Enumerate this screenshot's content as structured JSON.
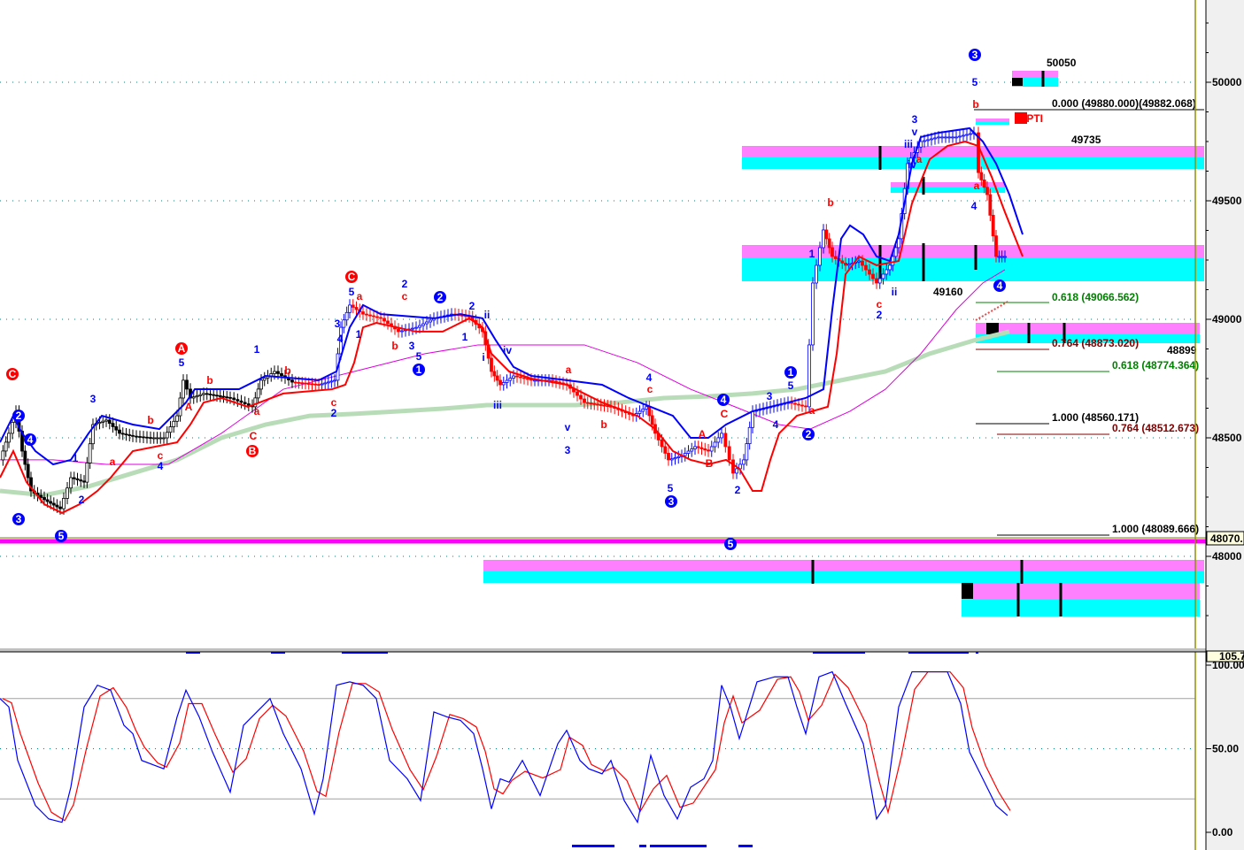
{
  "chart_data": [
    {
      "type": "line",
      "panel": "price",
      "price_axis": {
        "ticks": [
          "50000",
          "49500",
          "49000",
          "48500",
          "48000"
        ],
        "values": [
          50000,
          49500,
          49000,
          48500,
          48000
        ],
        "ylim": [
          47670,
          50340
        ],
        "current_price_label": "48070."
      },
      "grid": "horizontal dotted",
      "series": [
        {
          "role": "price-bars",
          "x": [
            0,
            2,
            3.6,
            5,
            7,
            10,
            13.6,
            16,
            19,
            21,
            24,
            27,
            30,
            34,
            37,
            40,
            41.4,
            43,
            46,
            52,
            57,
            59,
            62,
            66,
            72,
            75.6,
            77,
            79,
            82,
            86,
            90,
            94,
            98,
            102,
            106,
            109,
            111,
            113,
            116,
            120,
            124,
            128,
            132,
            138,
            143,
            146,
            148,
            151,
            154,
            157,
            160,
            163,
            165.6,
            168,
            170,
            174,
            178,
            182,
            183.6,
            186,
            188,
            191,
            194,
            198,
            201,
            203,
            205,
            208,
            212,
            216,
            220,
            221,
            223,
            225,
            227
          ],
          "values": [
            48407,
            48519,
            48612,
            48444,
            48276,
            48239,
            48201,
            48332,
            48313,
            48556,
            48575,
            48519,
            48507,
            48500,
            48500,
            48593,
            48743,
            48668,
            48687,
            48668,
            48631,
            48743,
            48780,
            48735,
            48724,
            48743,
            48966,
            49060,
            49022,
            49004,
            48948,
            48966,
            49004,
            49022,
            49011,
            48948,
            48780,
            48724,
            48761,
            48743,
            48743,
            48724,
            48649,
            48631,
            48593,
            48631,
            48519,
            48407,
            48425,
            48463,
            48444,
            48519,
            48351,
            48407,
            48612,
            48631,
            48649,
            48631,
            49153,
            49377,
            49265,
            49228,
            49246,
            49153,
            49228,
            49340,
            49657,
            49750,
            49769,
            49769,
            49787,
            49619,
            49526,
            49265,
            49265
          ]
        },
        {
          "role": "upper-band",
          "color": "#0000ff",
          "x": [
            0,
            3,
            5,
            8,
            12,
            16,
            20,
            23,
            30,
            36,
            42,
            44,
            54,
            60,
            72,
            76,
            79,
            82,
            86,
            98,
            104,
            109,
            112,
            116,
            120,
            128,
            136,
            142,
            152,
            156,
            160,
            164,
            170,
            182,
            186,
            188,
            190,
            192,
            195,
            198,
            201,
            203,
            206,
            208,
            212,
            219,
            222,
            225,
            228,
            231
          ],
          "values": [
            48481,
            48593,
            48519,
            48444,
            48388,
            48407,
            48519,
            48593,
            48556,
            48537,
            48649,
            48705,
            48705,
            48761,
            48743,
            48780,
            48966,
            49060,
            49022,
            49004,
            49022,
            49004,
            48911,
            48799,
            48761,
            48743,
            48724,
            48668,
            48593,
            48500,
            48500,
            48556,
            48612,
            48668,
            48705,
            49041,
            49340,
            49396,
            49358,
            49265,
            49246,
            49358,
            49657,
            49769,
            49787,
            49806,
            49750,
            49657,
            49526,
            49358
          ]
        },
        {
          "role": "lower-band",
          "color": "#ff0000",
          "x": [
            0,
            3,
            6,
            10,
            14,
            18,
            22,
            25,
            30,
            40,
            43,
            46,
            50,
            56,
            64,
            75,
            78,
            80,
            82,
            85,
            94,
            100,
            106,
            109,
            111,
            115,
            120,
            128,
            136,
            144,
            148,
            152,
            156,
            160,
            164,
            167,
            170,
            172,
            174,
            176,
            180,
            187,
            189,
            191,
            194,
            198,
            203,
            206,
            210,
            214,
            218,
            221,
            224,
            227,
            231
          ],
          "values": [
            48332,
            48444,
            48313,
            48220,
            48183,
            48220,
            48276,
            48332,
            48444,
            48481,
            48556,
            48649,
            48668,
            48631,
            48687,
            48705,
            48724,
            48817,
            48966,
            48985,
            48948,
            48948,
            49004,
            48966,
            48855,
            48780,
            48750,
            48724,
            48649,
            48593,
            48537,
            48444,
            48407,
            48388,
            48407,
            48370,
            48276,
            48276,
            48407,
            48519,
            48593,
            48631,
            48855,
            49190,
            49265,
            49228,
            49246,
            49489,
            49675,
            49731,
            49750,
            49731,
            49601,
            49452,
            49265
          ]
        },
        {
          "role": "slow-ma",
          "color": "#b8dcb8",
          "x": [
            0,
            10,
            20,
            30,
            40,
            50,
            60,
            70,
            80,
            90,
            100,
            110,
            120,
            130,
            140,
            150,
            160,
            170,
            180,
            190,
            200,
            210,
            220,
            228
          ],
          "values": [
            48276,
            48258,
            48295,
            48351,
            48407,
            48500,
            48556,
            48593,
            48601,
            48612,
            48623,
            48638,
            48638,
            48638,
            48649,
            48668,
            48675,
            48687,
            48705,
            48743,
            48780,
            48855,
            48911,
            48948
          ]
        },
        {
          "role": "ma",
          "color": "#e000e0",
          "x": [
            0,
            12,
            24,
            38,
            50,
            64,
            80,
            96,
            108,
            132,
            144,
            156,
            166,
            176,
            183,
            192,
            200,
            208,
            216,
            222,
            227
          ],
          "values": [
            48407,
            48407,
            48388,
            48388,
            48519,
            48705,
            48780,
            48855,
            48892,
            48892,
            48817,
            48705,
            48631,
            48556,
            48537,
            48612,
            48705,
            48855,
            49041,
            49153,
            49209
          ]
        }
      ],
      "annotations": {
        "levels": [
          "50050",
          "49735",
          "49160",
          "48899"
        ],
        "tag": "58PTI",
        "fib": [
          {
            "text": "0.000 (49880.000)(49882.068)",
            "color": "#000000"
          },
          {
            "text": "0.618 (49066.562)",
            "color": "#008000"
          },
          {
            "text": "0.764 (48873.020)",
            "color": "#800000"
          },
          {
            "text": "0.618 (48774.364)",
            "color": "#008000"
          },
          {
            "text": "1.000 (48560.171)",
            "color": "#000000"
          },
          {
            "text": "0.764 (48512.673)",
            "color": "#800000"
          },
          {
            "text": "1.000 (48089.666)",
            "color": "#000000"
          }
        ],
        "wave_labels": [
          {
            "t": "C",
            "c": "#ff0000",
            "circ": true
          },
          {
            "t": "2",
            "c": "#0000ff",
            "circ": true
          },
          {
            "t": "4",
            "c": "#0000ff",
            "circ": true
          },
          {
            "t": "3",
            "c": "#0000ff",
            "circ": true
          },
          {
            "t": "5",
            "c": "#0000ff",
            "circ": true
          },
          {
            "t": "A",
            "c": "#ff0000",
            "circ": true
          },
          {
            "t": "B",
            "c": "#ff0000",
            "circ": true
          },
          {
            "t": "C",
            "c": "#ff0000",
            "circ": true
          },
          {
            "t": "2",
            "c": "#0000ff",
            "circ": true
          },
          {
            "t": "1",
            "c": "#0000ff",
            "circ": true
          },
          {
            "t": "4",
            "c": "#0000ff",
            "circ": true
          },
          {
            "t": "3",
            "c": "#0000ff",
            "circ": true
          },
          {
            "t": "5",
            "c": "#0000ff",
            "circ": true
          },
          {
            "t": "1",
            "c": "#0000ff",
            "circ": true
          },
          {
            "t": "2",
            "c": "#0000ff",
            "circ": true
          },
          {
            "t": "3",
            "c": "#0000ff",
            "circ": true
          },
          {
            "t": "4",
            "c": "#0000ff",
            "circ": true
          },
          {
            "t": "1",
            "c": "#0000ff"
          },
          {
            "t": "3",
            "c": "#0000ff"
          },
          {
            "t": "2",
            "c": "#0000ff"
          },
          {
            "t": "a",
            "c": "#ff0000"
          },
          {
            "t": "b",
            "c": "#ff0000"
          },
          {
            "t": "c",
            "c": "#ff0000"
          },
          {
            "t": "4",
            "c": "#0000ff"
          },
          {
            "t": "5",
            "c": "#0000ff"
          },
          {
            "t": "A",
            "c": "#ff0000"
          },
          {
            "t": "b",
            "c": "#ff0000"
          },
          {
            "t": "1",
            "c": "#0000ff"
          },
          {
            "t": "b",
            "c": "#ff0000"
          },
          {
            "t": "a",
            "c": "#ff0000"
          },
          {
            "t": "C",
            "c": "#ff0000"
          },
          {
            "t": "c",
            "c": "#ff0000"
          },
          {
            "t": "2",
            "c": "#0000ff"
          },
          {
            "t": "5",
            "c": "#0000ff"
          },
          {
            "t": "a",
            "c": "#ff0000"
          },
          {
            "t": "3",
            "c": "#0000ff"
          },
          {
            "t": "4",
            "c": "#0000ff"
          },
          {
            "t": "1",
            "c": "#0000ff"
          },
          {
            "t": "2",
            "c": "#0000ff"
          },
          {
            "t": "c",
            "c": "#ff0000"
          },
          {
            "t": "b",
            "c": "#ff0000"
          },
          {
            "t": "3",
            "c": "#0000ff"
          },
          {
            "t": "5",
            "c": "#0000ff"
          },
          {
            "t": "1",
            "c": "#0000ff"
          },
          {
            "t": "2",
            "c": "#0000ff"
          },
          {
            "t": "ii",
            "c": "#0000ff"
          },
          {
            "t": "i",
            "c": "#0000ff"
          },
          {
            "t": "iv",
            "c": "#0000ff"
          },
          {
            "t": "iii",
            "c": "#0000ff"
          },
          {
            "t": "a",
            "c": "#ff0000"
          },
          {
            "t": "v",
            "c": "#0000ff"
          },
          {
            "t": "3",
            "c": "#0000ff"
          },
          {
            "t": "b",
            "c": "#ff0000"
          },
          {
            "t": "4",
            "c": "#0000ff"
          },
          {
            "t": "c",
            "c": "#ff0000"
          },
          {
            "t": "5",
            "c": "#0000ff"
          },
          {
            "t": "A",
            "c": "#ff0000"
          },
          {
            "t": "B",
            "c": "#ff0000"
          },
          {
            "t": "C",
            "c": "#ff0000"
          },
          {
            "t": "2",
            "c": "#0000ff"
          },
          {
            "t": "3",
            "c": "#0000ff"
          },
          {
            "t": "4",
            "c": "#0000ff"
          },
          {
            "t": "5",
            "c": "#0000ff"
          },
          {
            "t": "a",
            "c": "#ff0000"
          },
          {
            "t": "b",
            "c": "#ff0000"
          },
          {
            "t": "1",
            "c": "#0000ff"
          },
          {
            "t": "c",
            "c": "#ff0000"
          },
          {
            "t": "2",
            "c": "#0000ff"
          },
          {
            "t": "ii",
            "c": "#0000ff"
          },
          {
            "t": "iii",
            "c": "#0000ff"
          },
          {
            "t": "iv",
            "c": "#0000ff"
          },
          {
            "t": "v",
            "c": "#0000ff"
          },
          {
            "t": "3",
            "c": "#0000ff"
          },
          {
            "t": "a",
            "c": "#ff0000"
          },
          {
            "t": "5",
            "c": "#0000ff"
          },
          {
            "t": "b",
            "c": "#ff0000"
          },
          {
            "t": "4",
            "c": "#0000ff"
          },
          {
            "t": "a",
            "c": "#ff0000"
          }
        ]
      },
      "zone_colors": {
        "upper": "#ff80ff",
        "lower": "#00ffff"
      }
    },
    {
      "type": "line",
      "panel": "oscillator",
      "axis": {
        "ticks": [
          "100.00",
          "50.00",
          "0.00"
        ],
        "values": [
          100,
          50,
          0
        ],
        "ylim": [
          -10,
          110
        ],
        "current_label": "105.7",
        "guide_lines": [
          80,
          20
        ]
      },
      "series": [
        {
          "role": "k",
          "color": "#0000ff",
          "x": [
            0,
            2,
            4,
            8,
            11,
            14,
            16,
            19,
            22,
            25,
            28,
            30,
            32,
            35,
            37,
            40,
            42,
            45,
            48,
            52,
            55,
            58,
            61,
            64,
            68,
            71,
            73,
            76,
            79,
            82,
            85,
            88,
            92,
            95,
            98,
            101,
            104,
            107,
            109,
            111,
            113,
            115,
            118,
            122,
            126,
            128,
            131,
            133,
            136,
            138,
            141,
            144,
            147,
            150,
            153,
            156,
            159,
            161,
            163,
            165,
            167,
            171,
            175,
            178,
            180,
            182,
            185,
            188,
            191,
            195,
            198,
            200,
            203,
            206,
            209,
            214,
            217,
            219,
            222,
            225,
            227.6
          ],
          "values": [
            80,
            75,
            43,
            16,
            8,
            6,
            27,
            75,
            88,
            85,
            64,
            59,
            43,
            40,
            38,
            69,
            85,
            69,
            48,
            24,
            64,
            72,
            80,
            59,
            38,
            11,
            32,
            88,
            90,
            88,
            80,
            43,
            32,
            19,
            72,
            69,
            67,
            59,
            38,
            14,
            32,
            30,
            43,
            22,
            53,
            61,
            43,
            38,
            35,
            43,
            19,
            6,
            46,
            22,
            8,
            27,
            32,
            43,
            88,
            75,
            56,
            90,
            93,
            93,
            75,
            59,
            93,
            96,
            77,
            53,
            8,
            16,
            75,
            96,
            96,
            96,
            77,
            48,
            32,
            16,
            10
          ]
        },
        {
          "role": "d",
          "color": "#ff0000"
        }
      ]
    }
  ]
}
